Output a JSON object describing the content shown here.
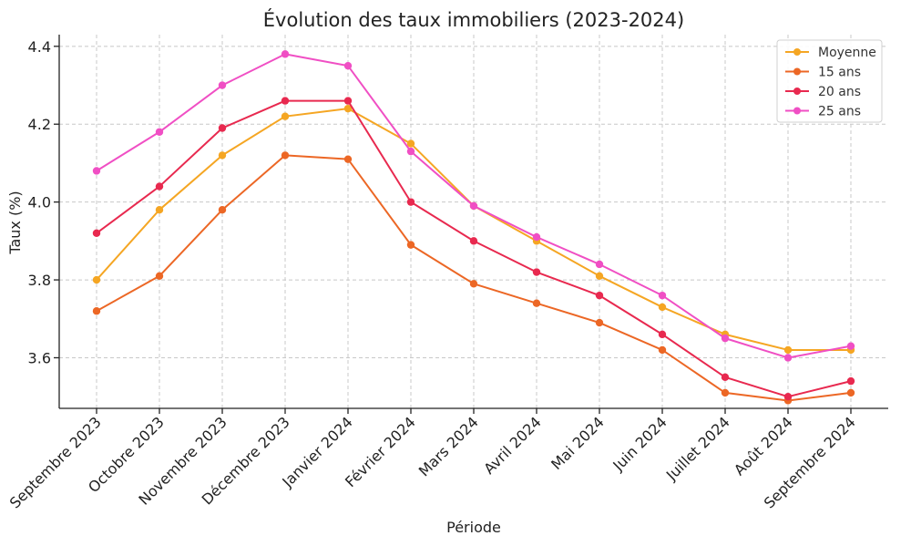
{
  "chart_data": {
    "type": "line",
    "title": "Évolution des taux immobiliers (2023-2024)",
    "xlabel": "Période",
    "ylabel": "Taux (%)",
    "categories": [
      "Septembre 2023",
      "Octobre 2023",
      "Novembre 2023",
      "Décembre 2023",
      "Janvier 2024",
      "Février 2024",
      "Mars 2024",
      "Avril 2024",
      "Mai 2024",
      "Juin 2024",
      "Juillet 2024",
      "Août 2024",
      "Septembre 2024"
    ],
    "ylim": [
      3.47,
      4.43
    ],
    "yticks": [
      "3.6",
      "3.8",
      "4.0",
      "4.2",
      "4.4"
    ],
    "grid": true,
    "legend_position": "top-right",
    "series": [
      {
        "name": "Moyenne",
        "color": "#f5a623",
        "values": [
          3.8,
          3.98,
          4.12,
          4.22,
          4.24,
          4.15,
          3.99,
          3.9,
          3.81,
          3.73,
          3.66,
          3.62,
          3.62
        ]
      },
      {
        "name": "15 ans",
        "color": "#ec6725",
        "values": [
          3.72,
          3.81,
          3.98,
          4.12,
          4.11,
          3.89,
          3.79,
          3.74,
          3.69,
          3.62,
          3.51,
          3.49,
          3.51
        ]
      },
      {
        "name": "20 ans",
        "color": "#e8294f",
        "values": [
          3.92,
          4.04,
          4.19,
          4.26,
          4.26,
          4.0,
          3.9,
          3.82,
          3.76,
          3.66,
          3.55,
          3.5,
          3.54
        ]
      },
      {
        "name": "25 ans",
        "color": "#f04fc4",
        "values": [
          4.08,
          4.18,
          4.3,
          4.38,
          4.35,
          4.13,
          3.99,
          3.91,
          3.84,
          3.76,
          3.65,
          3.6,
          3.63
        ]
      }
    ]
  }
}
